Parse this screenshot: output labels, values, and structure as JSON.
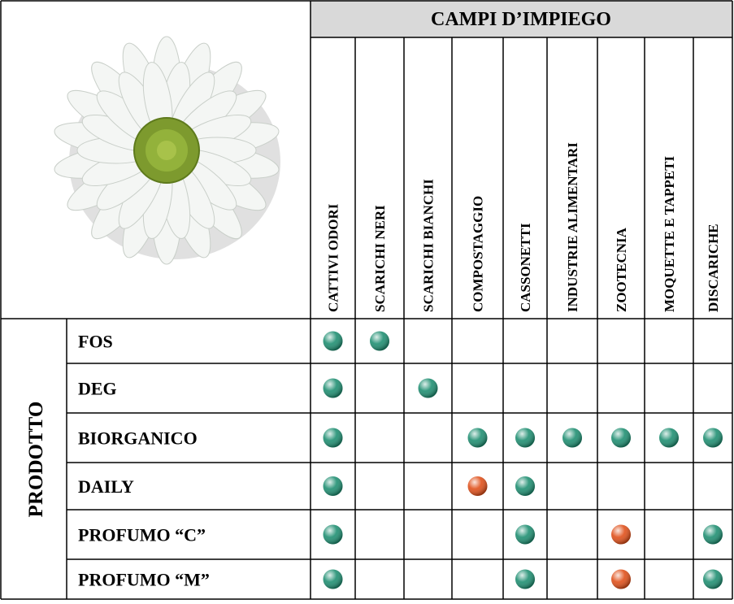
{
  "header": {
    "title": "CAMPI D’IMPIEGO",
    "columns": [
      "CATTIVI ODORI",
      "SCARICHI NERI",
      "SCARICHI BIANCHI",
      "COMPOSTAGGIO",
      "CASSONETTI",
      "INDUSTRIE ALIMENTARI",
      "ZOOTECNIA",
      "MOQUETTE E TAPPETI",
      "DISCARICHE"
    ]
  },
  "table": {
    "row_header": "PRODOTTO",
    "rows": [
      {
        "name": "FOS",
        "cells": [
          "#1f8f72",
          "#1f8f72",
          null,
          null,
          null,
          null,
          null,
          null,
          null
        ]
      },
      {
        "name": "DEG",
        "cells": [
          "#1f8f72",
          null,
          "#1f8f72",
          null,
          null,
          null,
          null,
          null,
          null
        ]
      },
      {
        "name": "BIORGANICO",
        "cells": [
          "#1f8f72",
          null,
          null,
          "#1f8f72",
          "#1f8f72",
          "#1f8f72",
          "#1f8f72",
          "#1f8f72",
          "#1f8f72"
        ]
      },
      {
        "name": "DAILY",
        "cells": [
          "#1f8f72",
          null,
          null,
          "#e0501a",
          "#1f8f72",
          null,
          null,
          null,
          null
        ]
      },
      {
        "name": "PROFUMO “C”",
        "cells": [
          "#1f8f72",
          null,
          null,
          null,
          "#1f8f72",
          null,
          "#e0501a",
          null,
          "#1f8f72"
        ]
      },
      {
        "name": "PROFUMO “M”",
        "cells": [
          "#1f8f72",
          null,
          null,
          null,
          "#1f8f72",
          null,
          "#e0501a",
          null,
          "#1f8f72"
        ]
      }
    ]
  }
}
